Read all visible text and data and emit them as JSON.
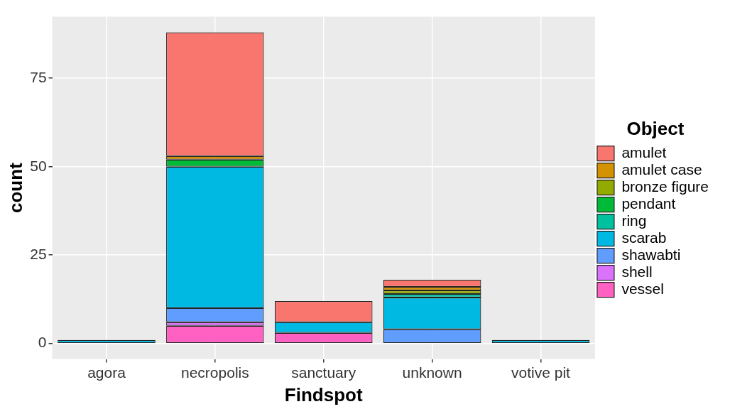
{
  "chart_data": {
    "type": "bar",
    "stacked": true,
    "xlabel": "Findspot",
    "ylabel": "count",
    "legend_title": "Object",
    "legend": "right",
    "grid": true,
    "categories": [
      "agora",
      "necropolis",
      "sanctuary",
      "unknown",
      "votive pit"
    ],
    "ylim": [
      -4.4,
      92.4
    ],
    "yticks": [
      0,
      25,
      50,
      75
    ],
    "series": [
      {
        "name": "vessel",
        "color": "#ff61c3",
        "values": [
          null,
          5,
          3,
          null,
          null
        ]
      },
      {
        "name": "shell",
        "color": "#db72fb",
        "values": [
          null,
          1,
          null,
          null,
          null
        ]
      },
      {
        "name": "shawabti",
        "color": "#619cff",
        "values": [
          null,
          4,
          null,
          4,
          null
        ]
      },
      {
        "name": "scarab",
        "color": "#00b9e3",
        "values": [
          1,
          40,
          3,
          9,
          1
        ]
      },
      {
        "name": "ring",
        "color": "#00c19f",
        "values": [
          null,
          null,
          null,
          1,
          null
        ]
      },
      {
        "name": "pendant",
        "color": "#00ba38",
        "values": [
          null,
          2,
          null,
          null,
          null
        ]
      },
      {
        "name": "bronze figure",
        "color": "#93aa00",
        "values": [
          null,
          null,
          null,
          1,
          null
        ]
      },
      {
        "name": "amulet case",
        "color": "#d39200",
        "values": [
          null,
          1,
          null,
          1,
          null
        ]
      },
      {
        "name": "amulet",
        "color": "#f8766d",
        "values": [
          null,
          35,
          6,
          2,
          null
        ]
      }
    ]
  }
}
